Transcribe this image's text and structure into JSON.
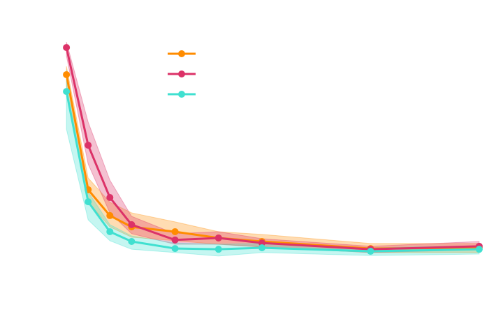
{
  "chart_data": {
    "type": "line",
    "x": [
      1,
      2,
      3,
      4,
      6,
      8,
      10,
      15,
      20
    ],
    "xlim": [
      0,
      21
    ],
    "ylim": [
      0,
      1
    ],
    "legend": true,
    "series": [
      {
        "color": "#ff8c00",
        "values": [
          0.814,
          0.356,
          0.253,
          0.208,
          0.189,
          0.164,
          0.15,
          0.122,
          0.125
        ],
        "upper": [
          0.847,
          0.403,
          0.306,
          0.264,
          0.228,
          0.189,
          0.178,
          0.142,
          0.142
        ],
        "lower": [
          0.764,
          0.306,
          0.208,
          0.167,
          0.153,
          0.139,
          0.128,
          0.106,
          0.106
        ]
      },
      {
        "color": "#dc3268",
        "values": [
          0.922,
          0.533,
          0.325,
          0.217,
          0.156,
          0.164,
          0.144,
          0.119,
          0.131
        ],
        "upper": [
          0.944,
          0.625,
          0.394,
          0.25,
          0.181,
          0.189,
          0.161,
          0.131,
          0.15
        ],
        "lower": [
          0.889,
          0.458,
          0.264,
          0.181,
          0.139,
          0.139,
          0.128,
          0.106,
          0.117
        ]
      },
      {
        "color": "#40e0d0",
        "values": [
          0.747,
          0.308,
          0.189,
          0.15,
          0.122,
          0.119,
          0.125,
          0.111,
          0.119
        ],
        "upper": [
          0.833,
          0.347,
          0.217,
          0.172,
          0.144,
          0.139,
          0.142,
          0.125,
          0.133
        ],
        "lower": [
          0.597,
          0.236,
          0.153,
          0.119,
          0.106,
          0.092,
          0.106,
          0.094,
          0.1
        ]
      }
    ]
  }
}
